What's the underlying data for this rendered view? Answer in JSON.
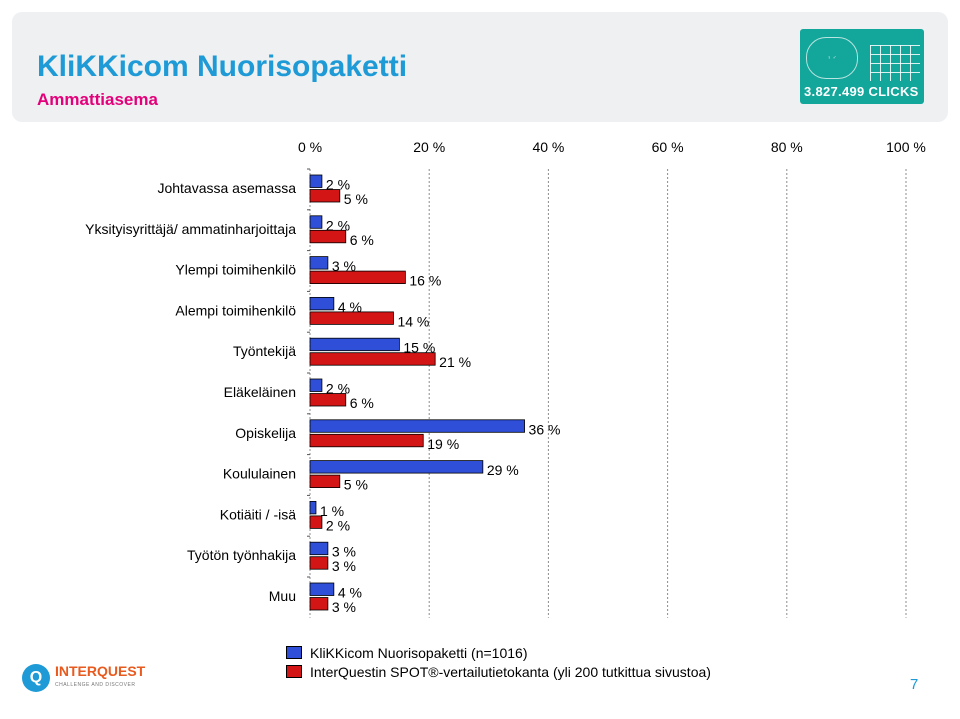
{
  "header": {
    "title": "KliKKicom Nuorisopaketti",
    "subtitle": "Ammattiasema",
    "badge_text": "3.827.499 CLICKS"
  },
  "colors": {
    "series1": "#2f4fd9",
    "series2": "#d41515",
    "accent": "#1e9ad6",
    "subtitle": "#e3007a"
  },
  "chart_data": {
    "type": "bar",
    "orientation": "horizontal",
    "categories": [
      "Johtavassa asemassa",
      "Yksityisyrittäjä/ ammatinharjoittaja",
      "Ylempi toimihenkilö",
      "Alempi toimihenkilö",
      "Työntekijä",
      "Eläkeläinen",
      "Opiskelija",
      "Koululainen",
      "Kotiäiti / -isä",
      "Työtön työnhakija",
      "Muu"
    ],
    "series": [
      {
        "name": "KliKKicom Nuorisopaketti (n=1016)",
        "values": [
          2,
          2,
          3,
          4,
          15,
          2,
          36,
          29,
          1,
          3,
          4
        ]
      },
      {
        "name": "InterQuestin SPOT®-vertailutietokanta (yli 200 tutkittua sivustoa)",
        "values": [
          5,
          6,
          16,
          14,
          21,
          6,
          19,
          5,
          2,
          3,
          3
        ]
      }
    ],
    "xlim": [
      0,
      100
    ],
    "ticks": [
      "0 %",
      "20 %",
      "40 %",
      "60 %",
      "80 %",
      "100 %"
    ],
    "tick_values": [
      0,
      20,
      40,
      60,
      80,
      100
    ],
    "value_suffix": " %",
    "grid": true,
    "legend_position": "bottom"
  },
  "footer": {
    "company": "INTERQUEST",
    "tagline": "CHALLENGE AND DISCOVER",
    "page_number": "7"
  }
}
